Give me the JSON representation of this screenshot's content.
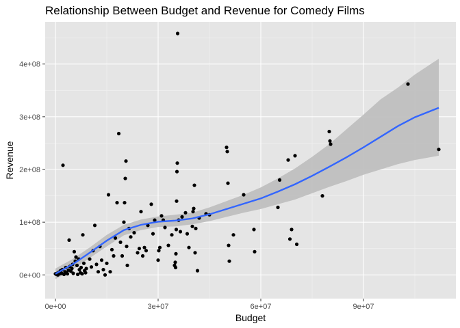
{
  "chart_data": {
    "type": "scatter",
    "title": "Relationship Between Budget and Revenue for Comedy Films",
    "xlabel": "Budget",
    "ylabel": "Revenue",
    "xlim": [
      -3000000,
      117000000
    ],
    "ylim": [
      -45000000,
      480000000
    ],
    "x_ticks": [
      {
        "value": 0,
        "label": "0e+00"
      },
      {
        "value": 30000000,
        "label": "3e+07"
      },
      {
        "value": 60000000,
        "label": "6e+07"
      },
      {
        "value": 90000000,
        "label": "9e+07"
      }
    ],
    "y_ticks": [
      {
        "value": 0,
        "label": "0e+00"
      },
      {
        "value": 100000000,
        "label": "1e+08"
      },
      {
        "value": 200000000,
        "label": "2e+08"
      },
      {
        "value": 300000000,
        "label": "3e+08"
      },
      {
        "value": 400000000,
        "label": "4e+08"
      }
    ],
    "grid": true,
    "background": "#e5e5e5",
    "point_color": "#000000",
    "smooth_color": "#3366ff",
    "ribbon_color": "#bdbdbd",
    "points": [
      [
        0,
        2000000
      ],
      [
        300000,
        1000000
      ],
      [
        500000,
        3000000
      ],
      [
        700000,
        0
      ],
      [
        1000000,
        5000000
      ],
      [
        1200000,
        2000000
      ],
      [
        1500000,
        8000000
      ],
      [
        1800000,
        3000000
      ],
      [
        2000000,
        10000000
      ],
      [
        2200000,
        208000000
      ],
      [
        2500000,
        1000000
      ],
      [
        2800000,
        6000000
      ],
      [
        3000000,
        14000000
      ],
      [
        3300000,
        4000000
      ],
      [
        3500000,
        2000000
      ],
      [
        3800000,
        9000000
      ],
      [
        4000000,
        66000000
      ],
      [
        4200000,
        16000000
      ],
      [
        4500000,
        7000000
      ],
      [
        4800000,
        12000000
      ],
      [
        5000000,
        20000000
      ],
      [
        5200000,
        3000000
      ],
      [
        5500000,
        44000000
      ],
      [
        5800000,
        26000000
      ],
      [
        6000000,
        34000000
      ],
      [
        6300000,
        18000000
      ],
      [
        6500000,
        1000000
      ],
      [
        6800000,
        30000000
      ],
      [
        7000000,
        10000000
      ],
      [
        7300000,
        4000000
      ],
      [
        7500000,
        14000000
      ],
      [
        7800000,
        2000000
      ],
      [
        8000000,
        76000000
      ],
      [
        8300000,
        22000000
      ],
      [
        8500000,
        8000000
      ],
      [
        8800000,
        4000000
      ],
      [
        9000000,
        12000000
      ],
      [
        10000000,
        30000000
      ],
      [
        10500000,
        15000000
      ],
      [
        11000000,
        46000000
      ],
      [
        11500000,
        94000000
      ],
      [
        12000000,
        20000000
      ],
      [
        12500000,
        6000000
      ],
      [
        13000000,
        54000000
      ],
      [
        13500000,
        28000000
      ],
      [
        14000000,
        10000000
      ],
      [
        14500000,
        0
      ],
      [
        15000000,
        22000000
      ],
      [
        15500000,
        152000000
      ],
      [
        16000000,
        6000000
      ],
      [
        16500000,
        48000000
      ],
      [
        17000000,
        36000000
      ],
      [
        17500000,
        70000000
      ],
      [
        18000000,
        137000000
      ],
      [
        18500000,
        268000000
      ],
      [
        19000000,
        62000000
      ],
      [
        19500000,
        36000000
      ],
      [
        20000000,
        100000000
      ],
      [
        20200000,
        137000000
      ],
      [
        20400000,
        183000000
      ],
      [
        20600000,
        216000000
      ],
      [
        20800000,
        54000000
      ],
      [
        21000000,
        18000000
      ],
      [
        21500000,
        88000000
      ],
      [
        22000000,
        72000000
      ],
      [
        23000000,
        80000000
      ],
      [
        24000000,
        42000000
      ],
      [
        24500000,
        50000000
      ],
      [
        25000000,
        120000000
      ],
      [
        25500000,
        36000000
      ],
      [
        26000000,
        52000000
      ],
      [
        26500000,
        46000000
      ],
      [
        27000000,
        94000000
      ],
      [
        28000000,
        134000000
      ],
      [
        28500000,
        78000000
      ],
      [
        29000000,
        104000000
      ],
      [
        30000000,
        28000000
      ],
      [
        30200000,
        46000000
      ],
      [
        30500000,
        52000000
      ],
      [
        31000000,
        112000000
      ],
      [
        31500000,
        104000000
      ],
      [
        32000000,
        90000000
      ],
      [
        33000000,
        56000000
      ],
      [
        34000000,
        76000000
      ],
      [
        34800000,
        18000000
      ],
      [
        35000000,
        24000000
      ],
      [
        35100000,
        14000000
      ],
      [
        35200000,
        40000000
      ],
      [
        35300000,
        86000000
      ],
      [
        35400000,
        140000000
      ],
      [
        35500000,
        196000000
      ],
      [
        35600000,
        212000000
      ],
      [
        35700000,
        458000000
      ],
      [
        36000000,
        104000000
      ],
      [
        36500000,
        82000000
      ],
      [
        37000000,
        110000000
      ],
      [
        38000000,
        118000000
      ],
      [
        38500000,
        78000000
      ],
      [
        39000000,
        52000000
      ],
      [
        40000000,
        92000000
      ],
      [
        40200000,
        120000000
      ],
      [
        40400000,
        126000000
      ],
      [
        40600000,
        170000000
      ],
      [
        40800000,
        42000000
      ],
      [
        41000000,
        88000000
      ],
      [
        41500000,
        8000000
      ],
      [
        42000000,
        108000000
      ],
      [
        44000000,
        116000000
      ],
      [
        45000000,
        114000000
      ],
      [
        50000000,
        242000000
      ],
      [
        50200000,
        234000000
      ],
      [
        50400000,
        174000000
      ],
      [
        50600000,
        56000000
      ],
      [
        50800000,
        26000000
      ],
      [
        52000000,
        76000000
      ],
      [
        55000000,
        152000000
      ],
      [
        58000000,
        86000000
      ],
      [
        58200000,
        44000000
      ],
      [
        65000000,
        128000000
      ],
      [
        65500000,
        180000000
      ],
      [
        68000000,
        218000000
      ],
      [
        68500000,
        68000000
      ],
      [
        69000000,
        86000000
      ],
      [
        70000000,
        226000000
      ],
      [
        70500000,
        58000000
      ],
      [
        78000000,
        150000000
      ],
      [
        80000000,
        272000000
      ],
      [
        80200000,
        254000000
      ],
      [
        80400000,
        248000000
      ],
      [
        103000000,
        362000000
      ],
      [
        112000000,
        238000000
      ]
    ],
    "smooth": [
      {
        "x": 0,
        "y": 2000000,
        "lo": -8000000,
        "hi": 12000000
      },
      {
        "x": 5000000,
        "y": 20000000,
        "lo": 10000000,
        "hi": 30000000
      },
      {
        "x": 10000000,
        "y": 42000000,
        "lo": 32000000,
        "hi": 52000000
      },
      {
        "x": 15000000,
        "y": 65000000,
        "lo": 54000000,
        "hi": 76000000
      },
      {
        "x": 20000000,
        "y": 85000000,
        "lo": 75000000,
        "hi": 95000000
      },
      {
        "x": 25000000,
        "y": 95000000,
        "lo": 85000000,
        "hi": 105000000
      },
      {
        "x": 30000000,
        "y": 101000000,
        "lo": 91000000,
        "hi": 111000000
      },
      {
        "x": 35000000,
        "y": 103000000,
        "lo": 92000000,
        "hi": 114000000
      },
      {
        "x": 40000000,
        "y": 107000000,
        "lo": 96000000,
        "hi": 118000000
      },
      {
        "x": 45000000,
        "y": 115000000,
        "lo": 102000000,
        "hi": 128000000
      },
      {
        "x": 50000000,
        "y": 125000000,
        "lo": 110000000,
        "hi": 140000000
      },
      {
        "x": 55000000,
        "y": 135000000,
        "lo": 118000000,
        "hi": 152000000
      },
      {
        "x": 60000000,
        "y": 145000000,
        "lo": 125000000,
        "hi": 166000000
      },
      {
        "x": 65000000,
        "y": 158000000,
        "lo": 134000000,
        "hi": 183000000
      },
      {
        "x": 70000000,
        "y": 172000000,
        "lo": 143000000,
        "hi": 202000000
      },
      {
        "x": 75000000,
        "y": 188000000,
        "lo": 155000000,
        "hi": 224000000
      },
      {
        "x": 80000000,
        "y": 205000000,
        "lo": 167000000,
        "hi": 248000000
      },
      {
        "x": 85000000,
        "y": 223000000,
        "lo": 178000000,
        "hi": 276000000
      },
      {
        "x": 90000000,
        "y": 242000000,
        "lo": 190000000,
        "hi": 304000000
      },
      {
        "x": 95000000,
        "y": 262000000,
        "lo": 200000000,
        "hi": 333000000
      },
      {
        "x": 100000000,
        "y": 282000000,
        "lo": 210000000,
        "hi": 355000000
      },
      {
        "x": 105000000,
        "y": 299000000,
        "lo": 218000000,
        "hi": 380000000
      },
      {
        "x": 112000000,
        "y": 317000000,
        "lo": 226000000,
        "hi": 410000000
      }
    ]
  }
}
